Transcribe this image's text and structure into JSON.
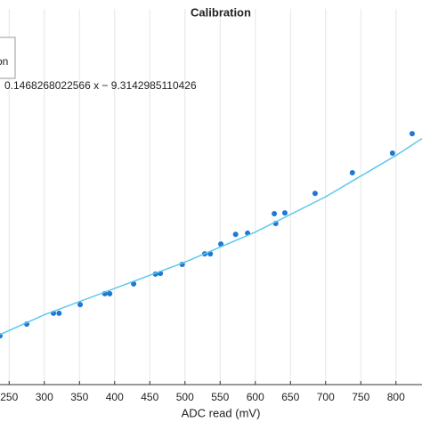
{
  "chart_data": {
    "type": "scatter",
    "title": "Calibration",
    "x_label": "ADC read (mV)",
    "legend_text": "on",
    "annotation": "0.1468268022566 x − 9.3142985110426",
    "xlim": [
      237,
      837
    ],
    "ylim": [
      0,
      100
    ],
    "xticks": [
      250,
      300,
      350,
      400,
      450,
      500,
      550,
      600,
      650,
      700,
      750,
      800
    ],
    "grid": true,
    "series": [
      {
        "color": "#1f78d1",
        "x": [
          237,
          275,
          313,
          321,
          351,
          386,
          393,
          427,
          458,
          465,
          496,
          528,
          536,
          551,
          572,
          589,
          627,
          629,
          642,
          685,
          738,
          795,
          823
        ],
        "values": [
          13.0,
          16.1,
          19.0,
          19.0,
          21.3,
          24.2,
          24.2,
          26.8,
          29.4,
          29.6,
          32.0,
          34.8,
          34.8,
          37.4,
          40.0,
          40.3,
          45.5,
          42.9,
          45.7,
          50.9,
          56.4,
          61.6,
          66.8
        ]
      },
      {
        "type": "line",
        "color": "#5cc8ee",
        "x": [
          237,
          300,
          400,
          500,
          600,
          700,
          800,
          837
        ],
        "values": [
          13.3,
          18.6,
          25.6,
          32.6,
          40.6,
          50.0,
          61.0,
          65.5
        ]
      }
    ]
  }
}
